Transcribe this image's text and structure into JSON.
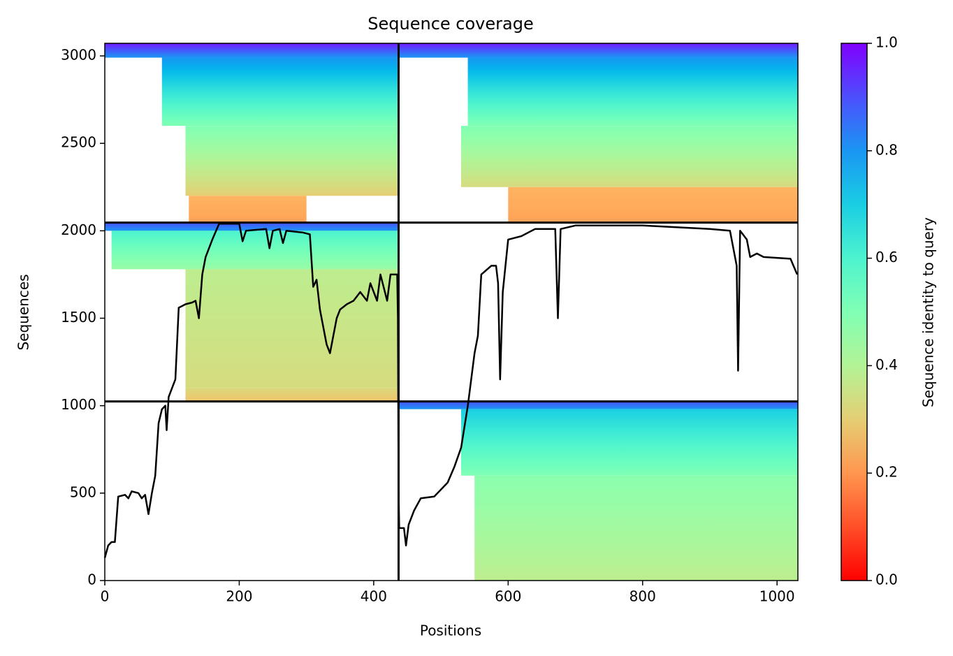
{
  "chart_data": {
    "type": "coverage",
    "title": "Sequence coverage",
    "xlabel": "Positions",
    "ylabel": "Sequences",
    "xlim": [
      0,
      1031
    ],
    "ylim": [
      0,
      3072
    ],
    "xticks": [
      0,
      200,
      400,
      600,
      800,
      1000
    ],
    "yticks": [
      0,
      500,
      1000,
      1500,
      2000,
      2500,
      3000
    ],
    "line_color": "#000000",
    "x": [
      0,
      5,
      10,
      15,
      20,
      30,
      35,
      40,
      50,
      55,
      60,
      65,
      70,
      75,
      80,
      85,
      90,
      92,
      95,
      100,
      105,
      110,
      120,
      130,
      135,
      140,
      145,
      150,
      160,
      170,
      190,
      200,
      205,
      210,
      240,
      245,
      250,
      260,
      265,
      270,
      295,
      305,
      310,
      315,
      320,
      330,
      335,
      340,
      345,
      350,
      360,
      370,
      380,
      390,
      395,
      400,
      405,
      410,
      420,
      425,
      435,
      436,
      437,
      438,
      445,
      448,
      452,
      460,
      470,
      490,
      500,
      510,
      520,
      530,
      540,
      550,
      555,
      560,
      575,
      582,
      585,
      588,
      592,
      600,
      620,
      640,
      670,
      674,
      678,
      700,
      800,
      900,
      930,
      940,
      942,
      945,
      955,
      960,
      970,
      980,
      1020,
      1030
    ],
    "values": [
      130,
      200,
      220,
      220,
      480,
      490,
      470,
      510,
      500,
      470,
      490,
      380,
      500,
      600,
      900,
      980,
      1000,
      860,
      1050,
      1100,
      1150,
      1560,
      1580,
      1590,
      1600,
      1500,
      1750,
      1850,
      1950,
      2040,
      2040,
      2040,
      1940,
      2000,
      2010,
      1900,
      2000,
      2010,
      1930,
      2000,
      1990,
      1980,
      1680,
      1720,
      1550,
      1350,
      1300,
      1400,
      1500,
      1550,
      1580,
      1600,
      1650,
      1600,
      1700,
      1650,
      1600,
      1750,
      1600,
      1750,
      1750,
      1500,
      500,
      300,
      300,
      200,
      320,
      400,
      470,
      480,
      520,
      560,
      650,
      760,
      1000,
      1300,
      1400,
      1750,
      1800,
      1800,
      1700,
      1150,
      1650,
      1950,
      1970,
      2010,
      2010,
      1500,
      2010,
      2030,
      2030,
      2010,
      2000,
      1800,
      1200,
      2000,
      1950,
      1850,
      1870,
      1850,
      1840,
      1750
    ],
    "boundaries_x": [
      437
    ],
    "boundaries_y": [
      1024,
      2047
    ],
    "msa_blocks": [
      {
        "x": [
          0,
          437
        ],
        "y": [
          2990,
          3072
        ],
        "identity": [
          0.8,
          0.97
        ]
      },
      {
        "x": [
          85,
          437
        ],
        "y": [
          2600,
          2990
        ],
        "identity": [
          0.5,
          0.8
        ]
      },
      {
        "x": [
          120,
          437
        ],
        "y": [
          2200,
          2600
        ],
        "identity": [
          0.3,
          0.5
        ]
      },
      {
        "x": [
          125,
          300
        ],
        "y": [
          2047,
          2200
        ],
        "identity": [
          0.22,
          0.25
        ]
      },
      {
        "x": [
          437,
          1031
        ],
        "y": [
          2990,
          3072
        ],
        "identity": [
          0.8,
          0.97
        ]
      },
      {
        "x": [
          540,
          1031
        ],
        "y": [
          2600,
          2990
        ],
        "identity": [
          0.5,
          0.8
        ]
      },
      {
        "x": [
          530,
          1031
        ],
        "y": [
          2250,
          2600
        ],
        "identity": [
          0.33,
          0.5
        ]
      },
      {
        "x": [
          600,
          1031
        ],
        "y": [
          2047,
          2250
        ],
        "identity": [
          0.22,
          0.25
        ]
      },
      {
        "x": [
          0,
          437
        ],
        "y": [
          2000,
          2047
        ],
        "identity": [
          0.8,
          0.9
        ]
      },
      {
        "x": [
          10,
          437
        ],
        "y": [
          1780,
          2000
        ],
        "identity": [
          0.45,
          0.6
        ]
      },
      {
        "x": [
          120,
          437
        ],
        "y": [
          1100,
          1780
        ],
        "identity": [
          0.33,
          0.38
        ]
      },
      {
        "x": [
          120,
          437
        ],
        "y": [
          1024,
          1100
        ],
        "identity": [
          0.28,
          0.32
        ]
      },
      {
        "x": [
          437,
          1031
        ],
        "y": [
          980,
          1024
        ],
        "identity": [
          0.8,
          0.9
        ]
      },
      {
        "x": [
          530,
          1031
        ],
        "y": [
          600,
          980
        ],
        "identity": [
          0.5,
          0.7
        ]
      },
      {
        "x": [
          550,
          1031
        ],
        "y": [
          0,
          600
        ],
        "identity": [
          0.38,
          0.48
        ]
      }
    ],
    "colorbar": {
      "label": "Sequence identity to query",
      "colormap": "rainbow_r",
      "lim": [
        0,
        1
      ],
      "ticks": [
        {
          "value": 0,
          "label": "0.0"
        },
        {
          "value": 0.2,
          "label": "0.2"
        },
        {
          "value": 0.4,
          "label": "0.4"
        },
        {
          "value": 0.6,
          "label": "0.6"
        },
        {
          "value": 0.8,
          "label": "0.8"
        },
        {
          "value": 1,
          "label": "1.0"
        }
      ]
    }
  }
}
